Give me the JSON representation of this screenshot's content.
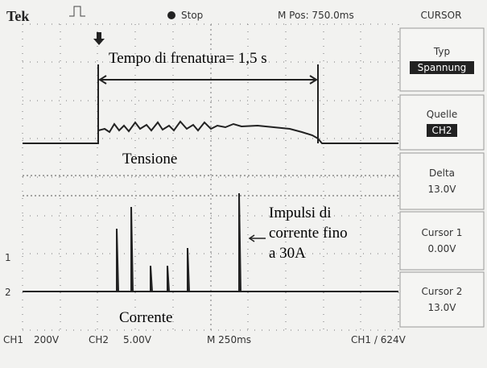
{
  "header": {
    "brand": "Tek",
    "state": "Stop",
    "position": "M Pos: 750.0ms",
    "menu": "CURSOR"
  },
  "menu": [
    {
      "label": "Typ",
      "value": "Spannung"
    },
    {
      "label": "Quelle",
      "value": "CH2"
    },
    {
      "label": "Delta",
      "value": "13.0V"
    },
    {
      "label": "Cursor 1",
      "value": "0.00V"
    },
    {
      "label": "Cursor 2",
      "value": "13.0V"
    }
  ],
  "footer": {
    "ch1": "CH1",
    "ch1_scale": "200V",
    "ch2": "CH2",
    "ch2_scale": "5.00V",
    "timebase": "M 250ms",
    "trigger": "CH1 / 624V"
  },
  "markers": [
    "1",
    "2"
  ],
  "annotations": {
    "braking_time": "Tempo di frenatura= 1,5 s",
    "voltage": "Tensione",
    "pulses": [
      "Impulsi di",
      "corrente fino",
      "a 30A"
    ],
    "current": "Corrente"
  }
}
